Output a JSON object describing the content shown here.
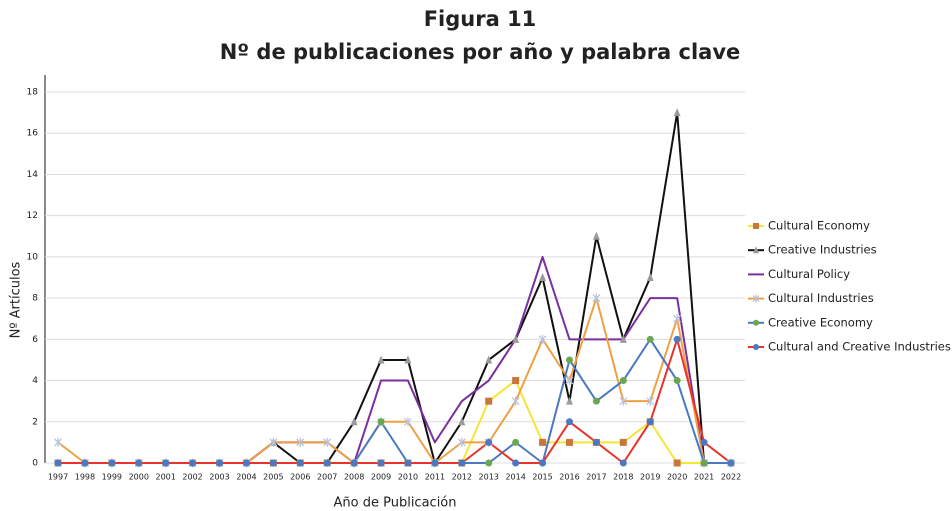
{
  "chart_data": {
    "type": "line",
    "title": "Figura 11",
    "subtitle": "Nº de publicaciones por año y palabra clave",
    "y_label": "Nº Artículos",
    "x_label": "Año de Publicación",
    "categories": [
      "1997",
      "1998",
      "1999",
      "2000",
      "2001",
      "2002",
      "2003",
      "2004",
      "2005",
      "2006",
      "2007",
      "2008",
      "2009",
      "2010",
      "2011",
      "2012",
      "2013",
      "2014",
      "2015",
      "2016",
      "2017",
      "2018",
      "2019",
      "2020",
      "2021",
      "2022"
    ],
    "ylim": [
      0,
      18
    ],
    "yticks": [
      0,
      2,
      4,
      6,
      8,
      10,
      12,
      14,
      16,
      18
    ],
    "grid": true,
    "legend": "right",
    "series": [
      {
        "name": "Cultural Economy",
        "color": "#f5e536",
        "marker_color": "#c8773a",
        "marker": "square",
        "values": [
          0,
          0,
          0,
          0,
          0,
          0,
          0,
          0,
          0,
          0,
          0,
          0,
          0,
          0,
          0,
          0,
          3,
          4,
          1,
          1,
          1,
          1,
          2,
          0,
          0,
          0
        ]
      },
      {
        "name": "Creative Industries",
        "color": "#111111",
        "marker_color": "#9a9a9a",
        "marker": "triangle",
        "values": [
          0,
          0,
          0,
          0,
          0,
          0,
          0,
          0,
          1,
          0,
          0,
          2,
          5,
          5,
          0,
          2,
          5,
          6,
          9,
          3,
          11,
          6,
          9,
          17,
          0,
          0
        ]
      },
      {
        "name": "Cultural Policy",
        "color": "#7a2fa0",
        "marker_color": "#7a2fa0",
        "marker": "none",
        "values": [
          0,
          0,
          0,
          0,
          0,
          0,
          0,
          0,
          1,
          1,
          1,
          0,
          4,
          4,
          1,
          3,
          4,
          6,
          10,
          6,
          6,
          6,
          8,
          8,
          0,
          0
        ]
      },
      {
        "name": "Cultural Industries",
        "color": "#f0a044",
        "marker_color": "#b8c4dc",
        "marker": "star",
        "values": [
          1,
          0,
          0,
          0,
          0,
          0,
          0,
          0,
          1,
          1,
          1,
          0,
          2,
          2,
          0,
          1,
          1,
          3,
          6,
          4,
          8,
          3,
          3,
          7,
          0,
          0
        ]
      },
      {
        "name": "Creative Economy",
        "color": "#4a78c2",
        "marker_color": "#6aa84f",
        "marker": "circle",
        "values": [
          0,
          0,
          0,
          0,
          0,
          0,
          0,
          0,
          0,
          0,
          0,
          0,
          2,
          0,
          0,
          0,
          0,
          1,
          0,
          5,
          3,
          4,
          6,
          4,
          0,
          0
        ]
      },
      {
        "name": "Cultural and Creative Industries",
        "color": "#e8322a",
        "marker_color": "#4a78c2",
        "marker": "circle",
        "values": [
          0,
          0,
          0,
          0,
          0,
          0,
          0,
          0,
          0,
          0,
          0,
          0,
          0,
          0,
          0,
          0,
          1,
          0,
          0,
          2,
          1,
          0,
          2,
          6,
          1,
          0
        ]
      }
    ]
  }
}
